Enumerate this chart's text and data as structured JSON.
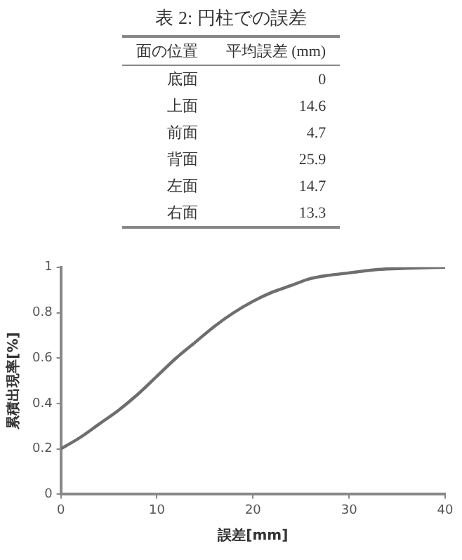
{
  "chart_data": [
    {
      "type": "other",
      "title": "表 2: 円柱での誤差",
      "xlabel": "面の位置",
      "ylabel": "平均誤差 (mm)",
      "categories": [
        "底面",
        "上面",
        "前面",
        "背面",
        "左面",
        "右面"
      ],
      "values": [
        0,
        14.6,
        4.7,
        25.9,
        14.7,
        13.3
      ],
      "data_labels": true
    },
    {
      "type": "line",
      "xlabel": "誤差[mm]",
      "ylabel": "累積出現率[%]",
      "xlim": [
        0,
        40
      ],
      "xticks": [
        0,
        10,
        20,
        30,
        40
      ],
      "ylim": [
        0,
        1
      ],
      "yticks": [
        0,
        0.2,
        0.4,
        0.6,
        0.8,
        1
      ],
      "grid": false,
      "legend": false,
      "marker": "none",
      "line_style": "solid",
      "series": [
        {
          "color": "#6e6e6e",
          "x": [
            0,
            2,
            4,
            6,
            8,
            10,
            12,
            14,
            16,
            18,
            20,
            22,
            24,
            26,
            28,
            30,
            33,
            36,
            40
          ],
          "values": [
            0.2,
            0.25,
            0.31,
            0.37,
            0.44,
            0.52,
            0.6,
            0.67,
            0.74,
            0.8,
            0.85,
            0.89,
            0.92,
            0.95,
            0.965,
            0.975,
            0.99,
            0.995,
            1.0
          ]
        }
      ]
    }
  ]
}
